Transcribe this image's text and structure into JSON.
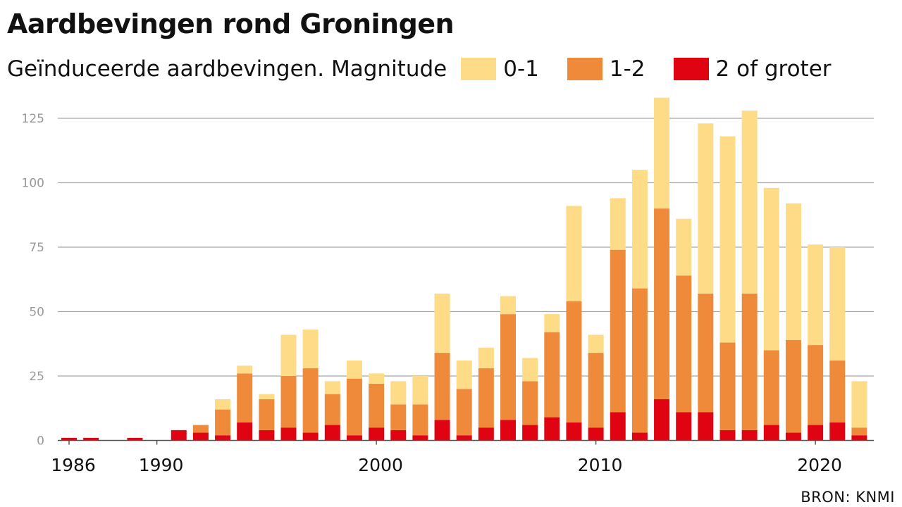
{
  "title": "Aardbevingen rond Groningen",
  "subtitle": "Geïnduceerde aardbevingen. Magnitude",
  "source": "BRON: KNMI",
  "legend": [
    {
      "label": "0-1",
      "color": "#fedb87"
    },
    {
      "label": "1-2",
      "color": "#ef8a3a"
    },
    {
      "label": "2 of groter",
      "color": "#e00412"
    }
  ],
  "chart_data": {
    "type": "bar",
    "stacked": true,
    "title": "Aardbevingen rond Groningen",
    "subtitle": "Geïnduceerde aardbevingen. Magnitude",
    "xlabel": "",
    "ylabel": "",
    "ylim": [
      0,
      135
    ],
    "yticks": [
      0,
      25,
      50,
      75,
      100,
      125
    ],
    "xticks": [
      1986,
      1990,
      2000,
      2010,
      2020
    ],
    "grid": true,
    "legend_position": "top",
    "categories": [
      1986,
      1987,
      1988,
      1989,
      1990,
      1991,
      1992,
      1993,
      1994,
      1995,
      1996,
      1997,
      1998,
      1999,
      2000,
      2001,
      2002,
      2003,
      2004,
      2005,
      2006,
      2007,
      2008,
      2009,
      2010,
      2011,
      2012,
      2013,
      2014,
      2015,
      2016,
      2017,
      2018,
      2019,
      2020,
      2021,
      2022
    ],
    "series": [
      {
        "name": "2 of groter",
        "color": "#e00412",
        "values": [
          1,
          1,
          0,
          1,
          0,
          4,
          3,
          2,
          7,
          4,
          5,
          3,
          6,
          2,
          5,
          4,
          2,
          8,
          2,
          5,
          8,
          6,
          9,
          7,
          5,
          11,
          3,
          16,
          11,
          11,
          4,
          4,
          6,
          3,
          6,
          7,
          2
        ]
      },
      {
        "name": "1-2",
        "color": "#ef8a3a",
        "values": [
          0,
          0,
          0,
          0,
          0,
          0,
          3,
          10,
          19,
          12,
          20,
          25,
          12,
          22,
          17,
          10,
          12,
          26,
          18,
          23,
          41,
          17,
          33,
          47,
          29,
          63,
          56,
          74,
          53,
          46,
          34,
          53,
          29,
          36,
          31,
          24,
          3
        ]
      },
      {
        "name": "0-1",
        "color": "#fedb87",
        "values": [
          0,
          0,
          0,
          0,
          0,
          0,
          0,
          4,
          3,
          2,
          16,
          15,
          5,
          7,
          4,
          9,
          11,
          23,
          11,
          8,
          7,
          9,
          7,
          37,
          7,
          20,
          46,
          43,
          22,
          66,
          80,
          71,
          63,
          53,
          39,
          44,
          18
        ]
      }
    ]
  }
}
